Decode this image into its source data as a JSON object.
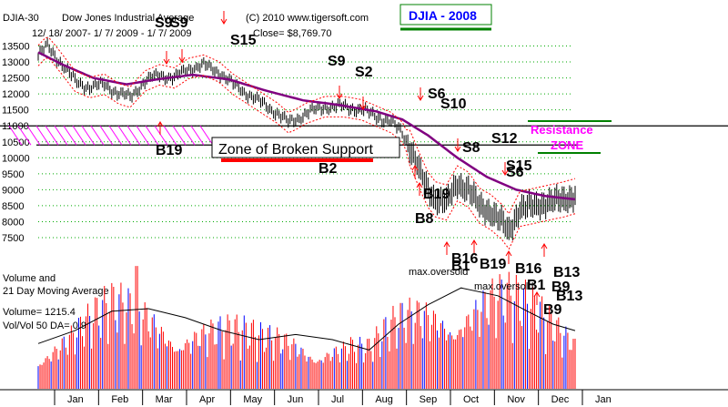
{
  "header": {
    "symbol": "DJIA-30",
    "name": "Dow Jones Industrial Average",
    "copyright": "(C) 2010 www.tigersoft.com",
    "dates": "12/ 18/ 2007- 1/ 7/ 2009 - 1/ 7/ 2009",
    "close": "Close= $8,769.70",
    "badge": "DJIA - 2008"
  },
  "colors": {
    "price_bar": "#000000",
    "ma_line": "#800080",
    "band": "#ff0000",
    "grid_dot": "#00aa00",
    "volume_red": "#ff0000",
    "volume_blue": "#0000ff",
    "resistance_text": "#ff00ff",
    "badge_text": "#0000ff",
    "badge_line": "#008000",
    "support_underline": "#ff0000"
  },
  "annotations": {
    "zone_box": "Zone of Broken Support",
    "resistance": "Resistance",
    "zone": "ZONE",
    "max_oversold_1": "max.oversold",
    "max_oversold_2": "max.oversold"
  },
  "volume_panel": {
    "title1": "Volume and",
    "title2": "21 Day Moving Average",
    "volume_text": "Volume= 1215.4",
    "ratio_text": "Vol/Vol 50 DA= 0.9"
  },
  "signals": [
    {
      "text": "S9"
    },
    {
      "text": "S9"
    },
    {
      "text": "S15"
    },
    {
      "text": "S9"
    },
    {
      "text": "S2"
    },
    {
      "text": "S6"
    },
    {
      "text": "S10"
    },
    {
      "text": "S8"
    },
    {
      "text": "S12"
    },
    {
      "text": "S15"
    },
    {
      "text": "S6"
    },
    {
      "text": "B19"
    },
    {
      "text": "B2"
    },
    {
      "text": "B19"
    },
    {
      "text": "B8"
    },
    {
      "text": "B16"
    },
    {
      "text": "B1"
    },
    {
      "text": "B19"
    },
    {
      "text": "B16"
    },
    {
      "text": "B13"
    },
    {
      "text": "B1"
    },
    {
      "text": "B9"
    },
    {
      "text": "B13"
    },
    {
      "text": "B9"
    }
  ],
  "chart_data": {
    "type": "ohlc",
    "y_ticks": [
      13500,
      13000,
      12500,
      12000,
      11500,
      11000,
      10500,
      10000,
      9500,
      9000,
      8500,
      8000,
      7500
    ],
    "ylim": [
      7300,
      13800
    ],
    "x_months": [
      "Jan",
      "Feb",
      "Mar",
      "Apr",
      "May",
      "Jun",
      "Jul",
      "Aug",
      "Sep",
      "Oct",
      "Nov",
      "Dec",
      "Jan"
    ],
    "price_anchors": [
      [
        0,
        13200
      ],
      [
        5,
        13500
      ],
      [
        12,
        13000
      ],
      [
        20,
        12400
      ],
      [
        28,
        12200
      ],
      [
        36,
        12300
      ],
      [
        44,
        12000
      ],
      [
        50,
        11900
      ],
      [
        58,
        12400
      ],
      [
        66,
        12600
      ],
      [
        74,
        12500
      ],
      [
        82,
        12800
      ],
      [
        90,
        12900
      ],
      [
        98,
        12700
      ],
      [
        106,
        12300
      ],
      [
        114,
        12000
      ],
      [
        122,
        11700
      ],
      [
        130,
        11400
      ],
      [
        136,
        11100
      ],
      [
        140,
        11200
      ],
      [
        146,
        11400
      ],
      [
        156,
        11600
      ],
      [
        166,
        11600
      ],
      [
        176,
        11500
      ],
      [
        184,
        11300
      ],
      [
        192,
        11100
      ],
      [
        198,
        10800
      ],
      [
        203,
        10200
      ],
      [
        208,
        9500
      ],
      [
        212,
        9000
      ],
      [
        216,
        8700
      ],
      [
        222,
        8600
      ],
      [
        228,
        9200
      ],
      [
        234,
        9000
      ],
      [
        240,
        8500
      ],
      [
        246,
        8300
      ],
      [
        252,
        8000
      ],
      [
        256,
        7700
      ],
      [
        262,
        8400
      ],
      [
        270,
        8500
      ],
      [
        278,
        8600
      ],
      [
        286,
        8700
      ],
      [
        292,
        8800
      ]
    ],
    "ma_anchors": [
      [
        0,
        13300
      ],
      [
        14,
        12900
      ],
      [
        30,
        12500
      ],
      [
        48,
        12300
      ],
      [
        64,
        12450
      ],
      [
        84,
        12600
      ],
      [
        104,
        12450
      ],
      [
        124,
        12100
      ],
      [
        144,
        11800
      ],
      [
        164,
        11650
      ],
      [
        184,
        11450
      ],
      [
        198,
        11200
      ],
      [
        212,
        10700
      ],
      [
        228,
        10000
      ],
      [
        244,
        9400
      ],
      [
        260,
        9000
      ],
      [
        276,
        8800
      ],
      [
        292,
        8700
      ]
    ],
    "resistance_band": [
      10400,
      11000
    ],
    "volume_ma": [
      [
        0,
        0.35
      ],
      [
        20,
        0.45
      ],
      [
        40,
        0.6
      ],
      [
        60,
        0.62
      ],
      [
        80,
        0.55
      ],
      [
        100,
        0.45
      ],
      [
        120,
        0.38
      ],
      [
        140,
        0.42
      ],
      [
        160,
        0.38
      ],
      [
        180,
        0.3
      ],
      [
        196,
        0.5
      ],
      [
        212,
        0.65
      ],
      [
        230,
        0.78
      ],
      [
        250,
        0.72
      ],
      [
        266,
        0.6
      ],
      [
        280,
        0.5
      ],
      [
        292,
        0.45
      ]
    ]
  }
}
